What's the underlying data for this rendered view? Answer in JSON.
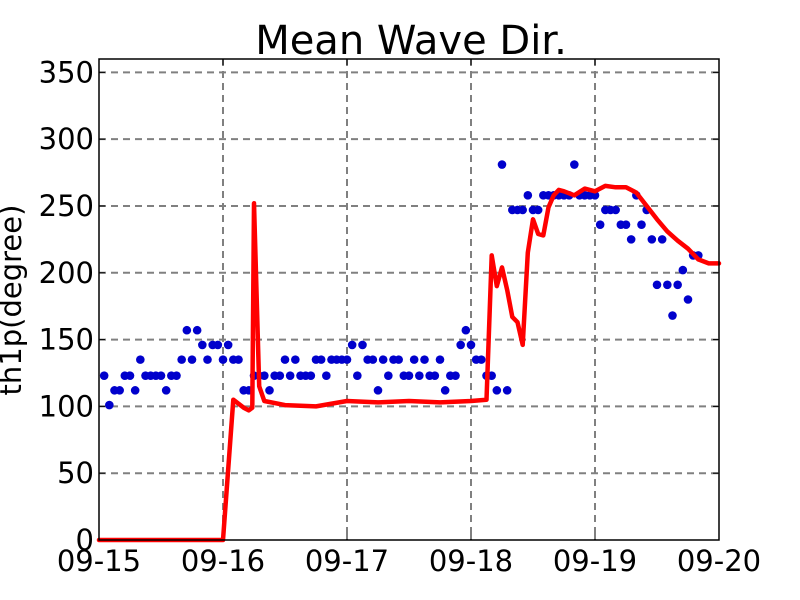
{
  "chart_data": {
    "type": "line",
    "title": "Mean Wave Dir.",
    "xlabel": "",
    "ylabel": "th1p(degree)",
    "ylim": [
      0,
      360
    ],
    "yticks": [
      0,
      50,
      100,
      150,
      200,
      250,
      300,
      350
    ],
    "xlim": [
      "09-15",
      "09-20"
    ],
    "xticks": [
      "09-15",
      "09-16",
      "09-17",
      "09-18",
      "09-19",
      "09-20"
    ],
    "grid": true,
    "colors": {
      "model": "#ff0000",
      "observed": "#0000cc",
      "grid": "#808080"
    },
    "series": [
      {
        "type": "line",
        "x": [
          "09-15 00:00",
          "09-15 06:00",
          "09-15 12:00",
          "09-15 18:00",
          "09-15 23:00",
          "09-16 00:00",
          "09-16 02:00",
          "09-16 04:00",
          "09-16 05:00",
          "09-16 05:40",
          "09-16 06:00",
          "09-16 07:00",
          "09-16 08:00",
          "09-16 12:00",
          "09-16 18:00",
          "09-17 00:00",
          "09-17 06:00",
          "09-17 12:00",
          "09-17 18:00",
          "09-18 00:00",
          "09-18 03:00",
          "09-18 04:00",
          "09-18 05:00",
          "09-18 06:00",
          "09-18 07:00",
          "09-18 08:00",
          "09-18 09:00",
          "09-18 10:00",
          "09-18 11:00",
          "09-18 12:00",
          "09-18 13:00",
          "09-18 14:00",
          "09-18 15:00",
          "09-18 16:00",
          "09-18 17:00",
          "09-18 18:00",
          "09-18 20:00",
          "09-18 22:00",
          "09-19 00:00",
          "09-19 02:00",
          "09-19 04:00",
          "09-19 06:00",
          "09-19 08:00",
          "09-19 10:00",
          "09-19 12:00",
          "09-19 14:00",
          "09-19 16:00",
          "09-19 18:00",
          "09-19 20:00",
          "09-19 22:00",
          "09-20 00:00"
        ],
        "values": [
          0,
          0,
          0,
          0,
          0,
          0,
          105,
          99,
          97,
          99,
          252,
          115,
          104,
          101,
          100,
          104,
          103,
          104,
          103,
          104,
          105,
          213,
          190,
          204,
          187,
          167,
          163,
          146,
          215,
          240,
          229,
          228,
          249,
          258,
          262,
          261,
          258,
          263,
          261,
          265,
          264,
          264,
          260,
          250,
          240,
          231,
          224,
          218,
          210,
          207,
          207
        ]
      },
      {
        "type": "scatter",
        "x": [
          "09-15 01:00",
          "09-15 02:00",
          "09-15 03:00",
          "09-15 04:00",
          "09-15 05:00",
          "09-15 06:00",
          "09-15 07:00",
          "09-15 08:00",
          "09-15 09:00",
          "09-15 10:00",
          "09-15 11:00",
          "09-15 12:00",
          "09-15 13:00",
          "09-15 14:00",
          "09-15 15:00",
          "09-15 16:00",
          "09-15 17:00",
          "09-15 18:00",
          "09-15 19:00",
          "09-15 20:00",
          "09-15 21:00",
          "09-15 22:00",
          "09-15 23:00",
          "09-16 00:00",
          "09-16 01:00",
          "09-16 02:00",
          "09-16 03:00",
          "09-16 04:00",
          "09-16 05:00",
          "09-16 06:00",
          "09-16 07:00",
          "09-16 08:00",
          "09-16 09:00",
          "09-16 10:00",
          "09-16 11:00",
          "09-16 12:00",
          "09-16 13:00",
          "09-16 14:00",
          "09-16 15:00",
          "09-16 16:00",
          "09-16 17:00",
          "09-16 18:00",
          "09-16 19:00",
          "09-16 20:00",
          "09-16 21:00",
          "09-16 22:00",
          "09-16 23:00",
          "09-17 00:00",
          "09-17 01:00",
          "09-17 02:00",
          "09-17 03:00",
          "09-17 04:00",
          "09-17 05:00",
          "09-17 06:00",
          "09-17 07:00",
          "09-17 08:00",
          "09-17 09:00",
          "09-17 10:00",
          "09-17 11:00",
          "09-17 12:00",
          "09-17 13:00",
          "09-17 14:00",
          "09-17 15:00",
          "09-17 16:00",
          "09-17 17:00",
          "09-17 18:00",
          "09-17 19:00",
          "09-17 20:00",
          "09-17 21:00",
          "09-17 22:00",
          "09-17 23:00",
          "09-18 00:00",
          "09-18 01:00",
          "09-18 02:00",
          "09-18 03:00",
          "09-18 04:00",
          "09-18 05:00",
          "09-18 06:00",
          "09-18 07:00",
          "09-18 08:00",
          "09-18 09:00",
          "09-18 10:00",
          "09-18 11:00",
          "09-18 12:00",
          "09-18 13:00",
          "09-18 14:00",
          "09-18 15:00",
          "09-18 16:00",
          "09-18 17:00",
          "09-18 18:00",
          "09-18 19:00",
          "09-18 20:00",
          "09-18 21:00",
          "09-18 22:00",
          "09-18 23:00",
          "09-19 00:00",
          "09-19 01:00",
          "09-19 02:00",
          "09-19 03:00",
          "09-19 04:00",
          "09-19 05:00",
          "09-19 06:00",
          "09-19 07:00",
          "09-19 08:00",
          "09-19 09:00",
          "09-19 10:00",
          "09-19 11:00",
          "09-19 12:00",
          "09-19 13:00",
          "09-19 14:00",
          "09-19 15:00",
          "09-19 16:00",
          "09-19 17:00",
          "09-19 18:00",
          "09-19 19:00",
          "09-19 20:00"
        ],
        "values": [
          123,
          101,
          112,
          112,
          123,
          123,
          112,
          135,
          123,
          123,
          123,
          123,
          112,
          123,
          123,
          135,
          157,
          135,
          157,
          146,
          135,
          146,
          146,
          135,
          146,
          135,
          135,
          112,
          112,
          123,
          123,
          123,
          112,
          123,
          123,
          135,
          123,
          135,
          123,
          123,
          123,
          135,
          135,
          123,
          135,
          135,
          135,
          135,
          146,
          123,
          146,
          135,
          135,
          112,
          135,
          123,
          135,
          135,
          123,
          123,
          135,
          123,
          135,
          123,
          123,
          135,
          112,
          123,
          123,
          146,
          157,
          146,
          135,
          135,
          123,
          123,
          112,
          281,
          112,
          247,
          247,
          247,
          258,
          247,
          247,
          258,
          258,
          258,
          258,
          258,
          258,
          281,
          258,
          258,
          258,
          258,
          236,
          247,
          247,
          247,
          236,
          236,
          225,
          258,
          236,
          247,
          225,
          191,
          225,
          191,
          168,
          191,
          202,
          180,
          213,
          213
        ]
      }
    ]
  }
}
